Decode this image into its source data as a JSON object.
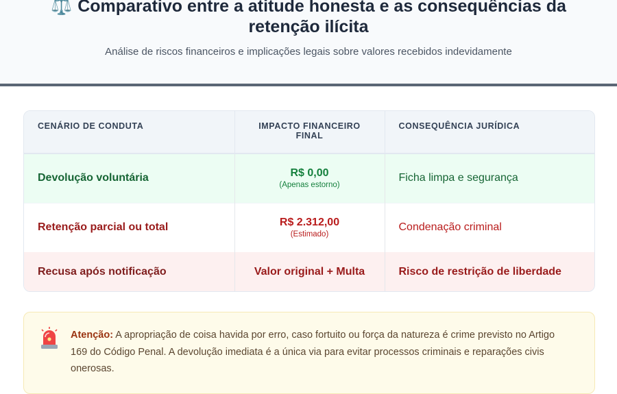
{
  "header": {
    "emoji": "⚖️",
    "title": "Comparativo entre a atitude honesta e as consequências da retenção ilícita",
    "subtitle": "Análise de riscos financeiros e implicações legais sobre valores recebidos indevidamente"
  },
  "table": {
    "headers": [
      "CENÁRIO DE CONDUTA",
      "IMPACTO FINANCEIRO FINAL",
      "CONSEQUÊNCIA JURÍDICA"
    ],
    "rows": [
      {
        "scenario": "Devolução voluntária",
        "impact": "R$ 0,00",
        "impact_note": "(Apenas estorno)",
        "consequence": "Ficha limpa e segurança"
      },
      {
        "scenario": "Retenção parcial ou total",
        "impact": "R$ 2.312,00",
        "impact_note": "(Estimado)",
        "consequence": "Condenação criminal"
      },
      {
        "scenario": "Recusa após notificação",
        "impact": "Valor original + Multa",
        "impact_note": "",
        "consequence": "Risco de restrição de liberdade"
      }
    ]
  },
  "alert": {
    "icon": "siren-icon",
    "label": "Atenção:",
    "text": " A apropriação de coisa havida por erro, caso fortuito ou força da natureza é crime previsto no Artigo 169 do Código Penal. A devolução imediata é a única via para evitar processos criminais e reparações civis onerosas."
  },
  "colors": {
    "header_border": "#5b6675",
    "good_bg": "#ecfdf3",
    "bad_bg": "#fdf0f0",
    "alert_bg": "#fefbea"
  }
}
